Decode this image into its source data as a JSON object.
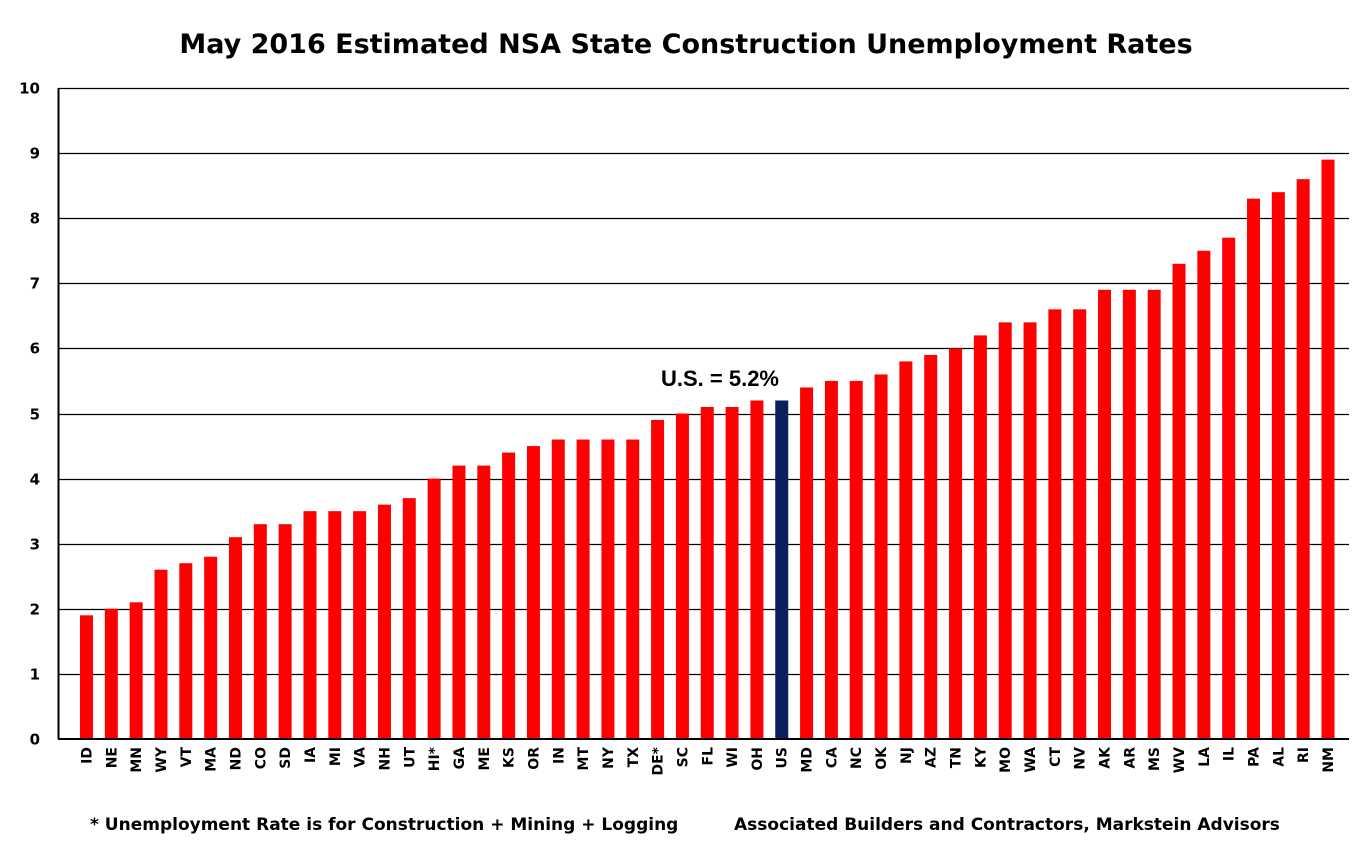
{
  "chart_data": {
    "type": "bar",
    "title": "May 2016 Estimated NSA State Construction Unemployment Rates",
    "xlabel": "",
    "ylabel": "",
    "ylim": [
      0,
      10
    ],
    "yticks": [
      "0",
      "1",
      "2",
      "3",
      "4",
      "5",
      "6",
      "7",
      "8",
      "9",
      "10"
    ],
    "grid": true,
    "legend": "none",
    "categories": [
      "ID",
      "NE",
      "MN",
      "WY",
      "VT",
      "MA",
      "ND",
      "CO",
      "SD",
      "IA",
      "MI",
      "VA",
      "NH",
      "UT",
      "HI*",
      "GA",
      "ME",
      "KS",
      "OR",
      "IN",
      "MT",
      "NY",
      "TX",
      "DE*",
      "SC",
      "FL",
      "WI",
      "OH",
      "US",
      "MD",
      "CA",
      "NC",
      "OK",
      "NJ",
      "AZ",
      "TN",
      "KY",
      "MO",
      "WA",
      "CT",
      "NV",
      "AK",
      "AR",
      "MS",
      "WV",
      "LA",
      "IL",
      "PA",
      "AL",
      "RI",
      "NM"
    ],
    "values": [
      1.9,
      2.0,
      2.1,
      2.6,
      2.7,
      2.8,
      3.1,
      3.3,
      3.3,
      3.5,
      3.5,
      3.5,
      3.6,
      3.7,
      4.0,
      4.2,
      4.2,
      4.4,
      4.5,
      4.6,
      4.6,
      4.6,
      4.6,
      4.9,
      5.0,
      5.1,
      5.1,
      5.2,
      5.2,
      5.4,
      5.5,
      5.5,
      5.6,
      5.8,
      5.9,
      6.0,
      6.2,
      6.4,
      6.4,
      6.6,
      6.6,
      6.9,
      6.9,
      6.9,
      7.3,
      7.5,
      7.7,
      8.3,
      8.4,
      8.6,
      8.9
    ],
    "highlight_category": "US",
    "colors": {
      "bar": "#ff0000",
      "highlight": "#0b1f5c"
    },
    "annotation": "U.S. = 5.2%",
    "footnote_left": "* Unemployment Rate is for Construction + Mining + Logging",
    "footnote_right": "Associated Builders and Contractors, Markstein Advisors"
  }
}
